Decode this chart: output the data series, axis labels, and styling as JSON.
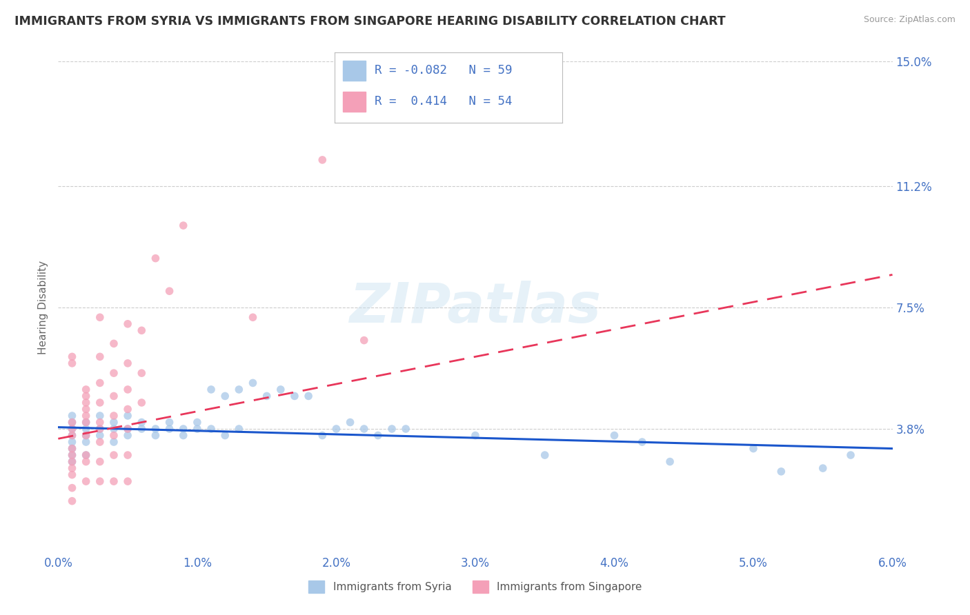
{
  "title": "IMMIGRANTS FROM SYRIA VS IMMIGRANTS FROM SINGAPORE HEARING DISABILITY CORRELATION CHART",
  "source": "Source: ZipAtlas.com",
  "ylabel": "Hearing Disability",
  "xlim": [
    0.0,
    0.06
  ],
  "ylim": [
    0.0,
    0.15
  ],
  "yticks": [
    0.038,
    0.075,
    0.112,
    0.15
  ],
  "ytick_labels": [
    "3.8%",
    "7.5%",
    "11.2%",
    "15.0%"
  ],
  "xticks": [
    0.0,
    0.01,
    0.02,
    0.03,
    0.04,
    0.05,
    0.06
  ],
  "xtick_labels": [
    "0.0%",
    "1.0%",
    "2.0%",
    "3.0%",
    "4.0%",
    "5.0%",
    "6.0%"
  ],
  "syria_color": "#a8c8e8",
  "singapore_color": "#f4a0b8",
  "syria_line_color": "#1a56cc",
  "singapore_line_color": "#e8365a",
  "syria_R": -0.082,
  "syria_N": 59,
  "singapore_R": 0.414,
  "singapore_N": 54,
  "watermark": "ZIPatlas",
  "legend_label_syria": "Immigrants from Syria",
  "legend_label_singapore": "Immigrants from Singapore",
  "title_color": "#333333",
  "tick_label_color": "#4472c4",
  "syria_scatter": [
    [
      0.001,
      0.04
    ],
    [
      0.001,
      0.036
    ],
    [
      0.001,
      0.034
    ],
    [
      0.001,
      0.038
    ],
    [
      0.001,
      0.042
    ],
    [
      0.001,
      0.03
    ],
    [
      0.001,
      0.028
    ],
    [
      0.001,
      0.032
    ],
    [
      0.002,
      0.038
    ],
    [
      0.002,
      0.036
    ],
    [
      0.002,
      0.04
    ],
    [
      0.002,
      0.034
    ],
    [
      0.002,
      0.03
    ],
    [
      0.003,
      0.038
    ],
    [
      0.003,
      0.042
    ],
    [
      0.003,
      0.036
    ],
    [
      0.004,
      0.04
    ],
    [
      0.004,
      0.038
    ],
    [
      0.004,
      0.034
    ],
    [
      0.005,
      0.038
    ],
    [
      0.005,
      0.042
    ],
    [
      0.005,
      0.036
    ],
    [
      0.006,
      0.04
    ],
    [
      0.006,
      0.038
    ],
    [
      0.007,
      0.038
    ],
    [
      0.007,
      0.036
    ],
    [
      0.008,
      0.04
    ],
    [
      0.008,
      0.038
    ],
    [
      0.009,
      0.038
    ],
    [
      0.009,
      0.036
    ],
    [
      0.01,
      0.04
    ],
    [
      0.01,
      0.038
    ],
    [
      0.011,
      0.05
    ],
    [
      0.011,
      0.038
    ],
    [
      0.012,
      0.048
    ],
    [
      0.012,
      0.036
    ],
    [
      0.013,
      0.05
    ],
    [
      0.013,
      0.038
    ],
    [
      0.014,
      0.052
    ],
    [
      0.015,
      0.048
    ],
    [
      0.016,
      0.05
    ],
    [
      0.017,
      0.048
    ],
    [
      0.018,
      0.048
    ],
    [
      0.019,
      0.036
    ],
    [
      0.02,
      0.038
    ],
    [
      0.021,
      0.04
    ],
    [
      0.022,
      0.038
    ],
    [
      0.023,
      0.036
    ],
    [
      0.024,
      0.038
    ],
    [
      0.025,
      0.038
    ],
    [
      0.03,
      0.036
    ],
    [
      0.035,
      0.03
    ],
    [
      0.04,
      0.036
    ],
    [
      0.042,
      0.034
    ],
    [
      0.044,
      0.028
    ],
    [
      0.05,
      0.032
    ],
    [
      0.052,
      0.025
    ],
    [
      0.055,
      0.026
    ],
    [
      0.057,
      0.03
    ]
  ],
  "singapore_scatter": [
    [
      0.001,
      0.04
    ],
    [
      0.001,
      0.038
    ],
    [
      0.001,
      0.036
    ],
    [
      0.001,
      0.032
    ],
    [
      0.001,
      0.03
    ],
    [
      0.001,
      0.028
    ],
    [
      0.001,
      0.026
    ],
    [
      0.001,
      0.024
    ],
    [
      0.001,
      0.02
    ],
    [
      0.001,
      0.016
    ],
    [
      0.001,
      0.06
    ],
    [
      0.001,
      0.058
    ],
    [
      0.002,
      0.05
    ],
    [
      0.002,
      0.048
    ],
    [
      0.002,
      0.046
    ],
    [
      0.002,
      0.044
    ],
    [
      0.002,
      0.042
    ],
    [
      0.002,
      0.04
    ],
    [
      0.002,
      0.036
    ],
    [
      0.002,
      0.03
    ],
    [
      0.002,
      0.028
    ],
    [
      0.002,
      0.022
    ],
    [
      0.003,
      0.072
    ],
    [
      0.003,
      0.06
    ],
    [
      0.003,
      0.052
    ],
    [
      0.003,
      0.046
    ],
    [
      0.003,
      0.04
    ],
    [
      0.003,
      0.038
    ],
    [
      0.003,
      0.034
    ],
    [
      0.003,
      0.028
    ],
    [
      0.003,
      0.022
    ],
    [
      0.004,
      0.064
    ],
    [
      0.004,
      0.055
    ],
    [
      0.004,
      0.048
    ],
    [
      0.004,
      0.042
    ],
    [
      0.004,
      0.036
    ],
    [
      0.004,
      0.03
    ],
    [
      0.004,
      0.022
    ],
    [
      0.005,
      0.07
    ],
    [
      0.005,
      0.058
    ],
    [
      0.005,
      0.05
    ],
    [
      0.005,
      0.044
    ],
    [
      0.005,
      0.038
    ],
    [
      0.005,
      0.03
    ],
    [
      0.005,
      0.022
    ],
    [
      0.006,
      0.068
    ],
    [
      0.006,
      0.055
    ],
    [
      0.006,
      0.046
    ],
    [
      0.019,
      0.12
    ],
    [
      0.009,
      0.1
    ],
    [
      0.007,
      0.09
    ],
    [
      0.008,
      0.08
    ],
    [
      0.014,
      0.072
    ],
    [
      0.022,
      0.065
    ]
  ]
}
